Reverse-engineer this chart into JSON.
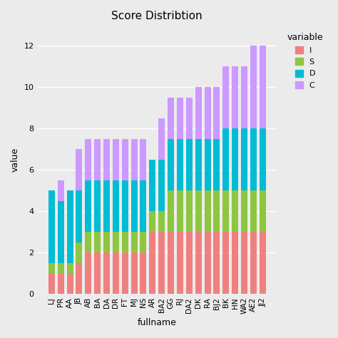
{
  "categories": [
    "LJ",
    "PR",
    "AA",
    "JB",
    "AB",
    "BA",
    "DA",
    "DR",
    "FT",
    "MJ",
    "NS",
    "AR",
    "BA2",
    "GG",
    "RJ",
    "DA2",
    "DK",
    "RA",
    "BJ2",
    "BK",
    "HN",
    "WA2",
    "AE2",
    "JJ2"
  ],
  "I": [
    1.0,
    1.0,
    1.0,
    1.5,
    2.0,
    2.0,
    2.0,
    2.0,
    2.0,
    2.0,
    2.0,
    3.0,
    3.0,
    3.0,
    3.0,
    3.0,
    3.0,
    3.0,
    3.0,
    3.0,
    3.0,
    3.0,
    3.0,
    3.0
  ],
  "S": [
    0.5,
    0.5,
    0.5,
    1.0,
    1.0,
    1.0,
    1.0,
    1.0,
    1.0,
    1.0,
    1.0,
    1.0,
    1.0,
    2.0,
    2.0,
    2.0,
    2.0,
    2.0,
    2.0,
    2.0,
    2.0,
    2.0,
    2.0,
    2.0
  ],
  "D": [
    3.5,
    3.0,
    3.5,
    2.5,
    2.5,
    2.5,
    2.5,
    2.5,
    2.5,
    2.5,
    2.5,
    2.5,
    2.5,
    2.5,
    2.5,
    2.5,
    2.5,
    2.5,
    2.5,
    3.0,
    3.0,
    3.0,
    3.0,
    3.0
  ],
  "C": [
    0.0,
    1.0,
    0.0,
    2.0,
    2.0,
    2.0,
    2.0,
    2.0,
    2.0,
    2.0,
    2.0,
    0.0,
    2.0,
    2.0,
    2.0,
    2.0,
    2.5,
    2.5,
    2.5,
    3.0,
    3.0,
    3.0,
    4.0,
    4.0
  ],
  "colors": {
    "I": "#F08080",
    "S": "#8DC63F",
    "D": "#00BCD4",
    "C": "#CC99FF"
  },
  "title": "Score Distribtion",
  "xlabel": "fullname",
  "ylabel": "value",
  "ylim": [
    0,
    13
  ],
  "yticks": [
    0,
    2,
    4,
    6,
    8,
    10,
    12
  ],
  "background_color": "#EBEBEB",
  "grid_color": "#FFFFFF",
  "bar_width": 0.7
}
